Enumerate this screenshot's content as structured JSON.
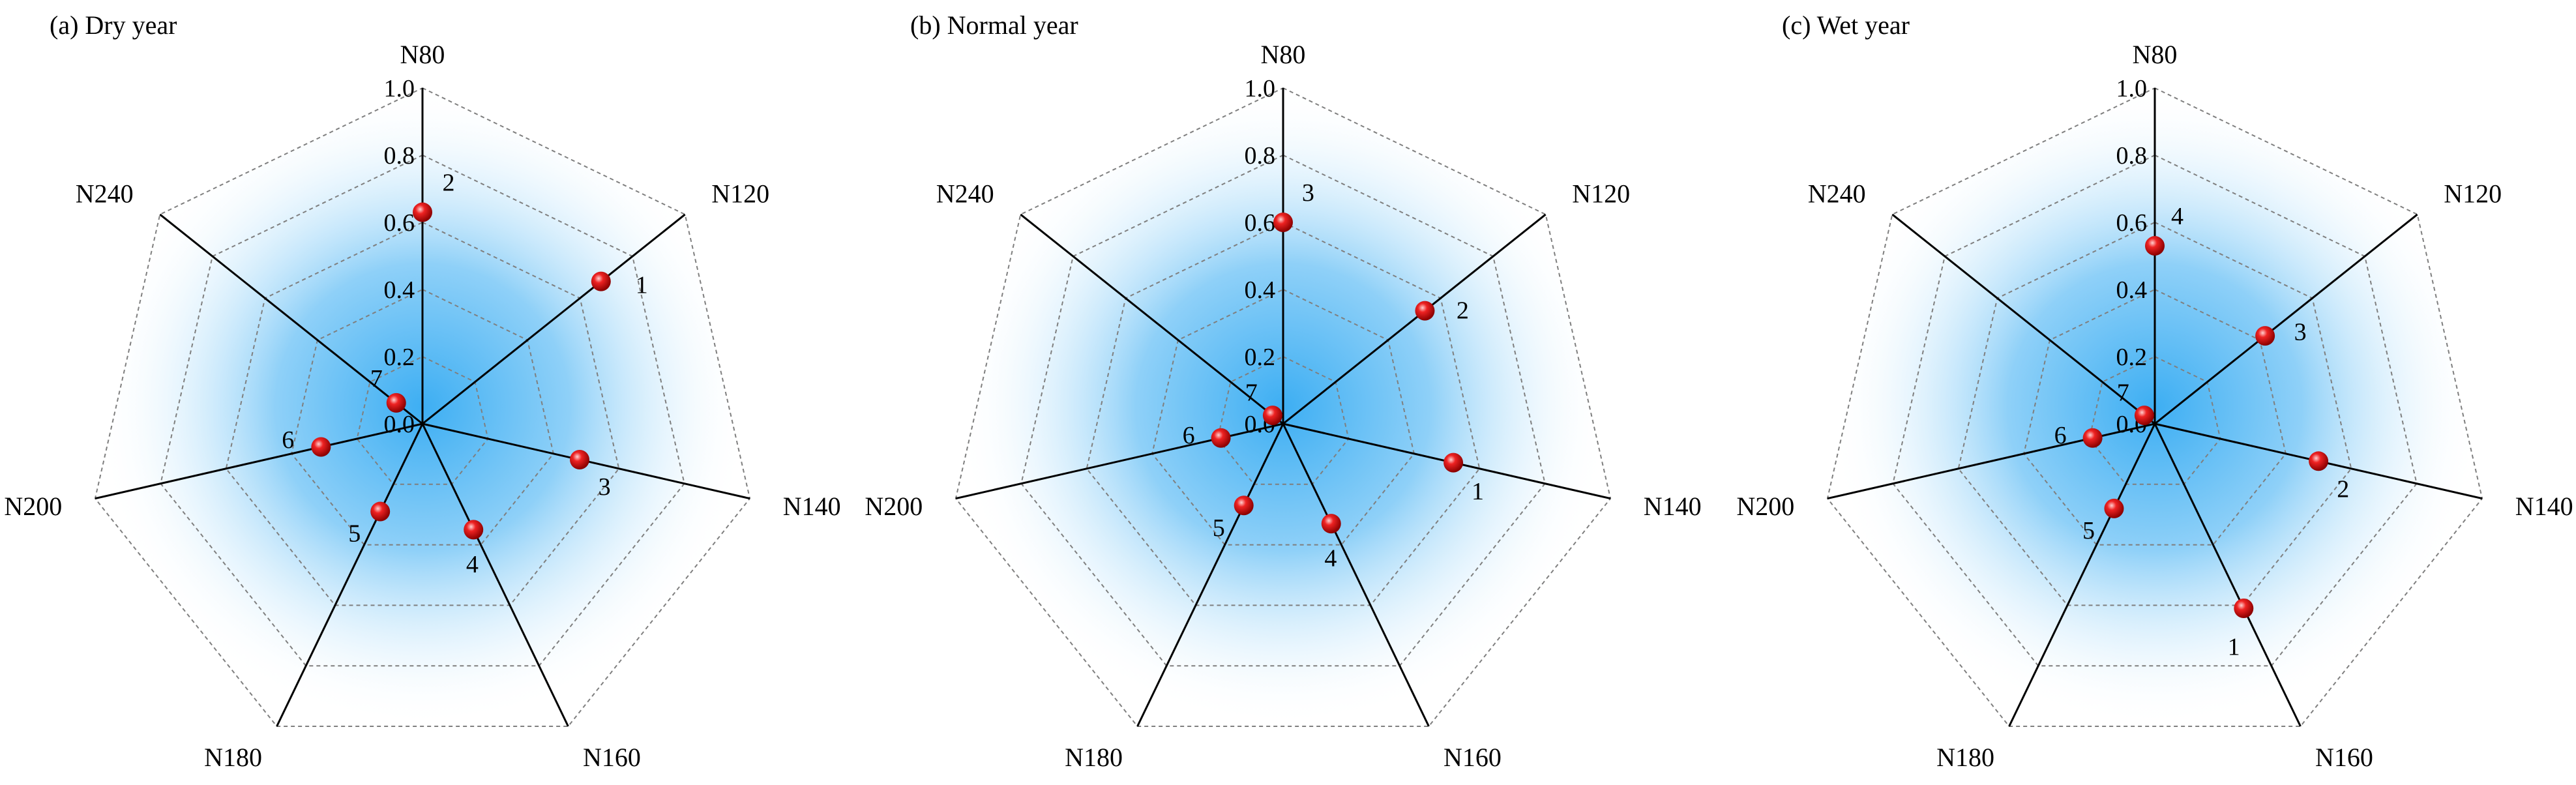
{
  "figure": {
    "colors": {
      "background_center": "#33aaf2",
      "background_edge": "#ffffff",
      "spoke": "#000000",
      "grid": "#7f7f7f",
      "marker_highlight": "#ffd0d0",
      "marker_body": "#ee2222",
      "marker_shadow": "#8a0000"
    }
  },
  "chart_data": [
    {
      "type": "radar",
      "title": "(a) Dry year",
      "axes": [
        "N80",
        "N120",
        "N140",
        "N160",
        "N180",
        "N200",
        "N240"
      ],
      "rlim": [
        0.0,
        1.0
      ],
      "ticks": [
        "0.0",
        "0.2",
        "0.4",
        "0.6",
        "0.8",
        "1.0"
      ],
      "grid": true,
      "values": [
        0.63,
        0.68,
        0.48,
        0.35,
        0.29,
        0.31,
        0.1
      ],
      "ranks": [
        "2",
        "1",
        "3",
        "4",
        "5",
        "6",
        "7"
      ]
    },
    {
      "type": "radar",
      "title": "(b) Normal year",
      "axes": [
        "N80",
        "N120",
        "N140",
        "N160",
        "N180",
        "N200",
        "N240"
      ],
      "rlim": [
        0.0,
        1.0
      ],
      "ticks": [
        "0.0",
        "0.2",
        "0.4",
        "0.6",
        "0.8",
        "1.0"
      ],
      "grid": true,
      "values": [
        0.6,
        0.54,
        0.52,
        0.33,
        0.27,
        0.19,
        0.04
      ],
      "ranks": [
        "3",
        "2",
        "1",
        "4",
        "5",
        "6",
        "7"
      ]
    },
    {
      "type": "radar",
      "title": "(c) Wet year",
      "axes": [
        "N80",
        "N120",
        "N140",
        "N160",
        "N180",
        "N200",
        "N240"
      ],
      "rlim": [
        0.0,
        1.0
      ],
      "ticks": [
        "0.0",
        "0.2",
        "0.4",
        "0.6",
        "0.8",
        "1.0"
      ],
      "grid": true,
      "values": [
        0.53,
        0.42,
        0.5,
        0.61,
        0.28,
        0.19,
        0.04
      ],
      "ranks": [
        "4",
        "3",
        "2",
        "1",
        "5",
        "6",
        "7"
      ]
    }
  ]
}
